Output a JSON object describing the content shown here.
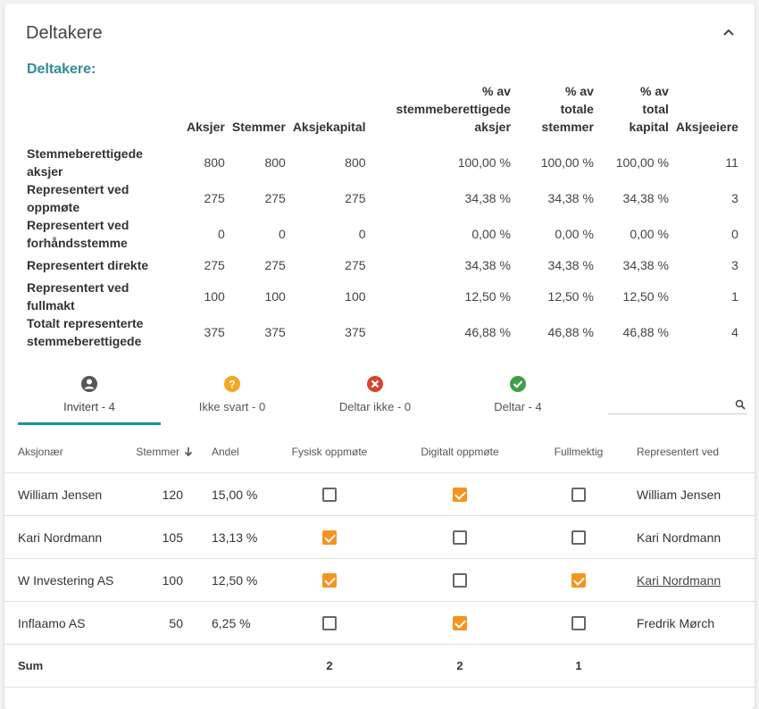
{
  "card": {
    "title": "Deltakere"
  },
  "summary": {
    "subtitle": "Deltakere:",
    "headers": [
      "Aksjer",
      "Stemmer",
      "Aksjekapital",
      "% av stemmeberettigede aksjer",
      "% av totale stemmer",
      "% av total kapital",
      "Aksjeeiere"
    ],
    "rows": [
      {
        "label": "Stemmeberettigede aksjer",
        "values": [
          "800",
          "800",
          "800",
          "100,00 %",
          "100,00 %",
          "100,00 %",
          "11"
        ]
      },
      {
        "label": "Representert ved oppmøte",
        "values": [
          "275",
          "275",
          "275",
          "34,38 %",
          "34,38 %",
          "34,38 %",
          "3"
        ]
      },
      {
        "label": "Representert ved forhåndsstemme",
        "values": [
          "0",
          "0",
          "0",
          "0,00 %",
          "0,00 %",
          "0,00 %",
          "0"
        ]
      },
      {
        "label": "Representert direkte",
        "values": [
          "275",
          "275",
          "275",
          "34,38 %",
          "34,38 %",
          "34,38 %",
          "3"
        ]
      },
      {
        "label": "Representert ved fullmakt",
        "values": [
          "100",
          "100",
          "100",
          "12,50 %",
          "12,50 %",
          "12,50 %",
          "1"
        ]
      },
      {
        "label": "Totalt representerte stemmeberettigede",
        "values": [
          "375",
          "375",
          "375",
          "46,88 %",
          "46,88 %",
          "46,88 %",
          "4"
        ]
      }
    ]
  },
  "tabs": [
    {
      "label": "Invitert - 4",
      "icon": "person-circle-icon",
      "color": "#555555"
    },
    {
      "label": "Ikke svart - 0",
      "icon": "question-circle-icon",
      "color": "#f5a623"
    },
    {
      "label": "Deltar ikke - 0",
      "icon": "x-circle-icon",
      "color": "#d9442a"
    },
    {
      "label": "Deltar - 4",
      "icon": "check-circle-icon",
      "color": "#3f9e48"
    }
  ],
  "search": {
    "placeholder": "",
    "icon": "search-icon"
  },
  "grid": {
    "headers": {
      "name": "Aksjonær",
      "votes": "Stemmer",
      "share": "Andel",
      "physical": "Fysisk oppmøte",
      "digital": "Digitalt oppmøte",
      "proxy": "Fullmektig",
      "represented": "Representert ved"
    },
    "rows": [
      {
        "name": "William Jensen",
        "votes": "120",
        "share": "15,00 %",
        "physical": false,
        "digital": true,
        "proxy": false,
        "represented": "William Jensen",
        "link": false
      },
      {
        "name": "Kari Nordmann",
        "votes": "105",
        "share": "13,13 %",
        "physical": true,
        "digital": false,
        "proxy": false,
        "represented": "Kari Nordmann",
        "link": false
      },
      {
        "name": "W Investering AS",
        "votes": "100",
        "share": "12,50 %",
        "physical": true,
        "digital": false,
        "proxy": true,
        "represented": "Kari Nordmann",
        "link": true
      },
      {
        "name": "Inflaamo AS",
        "votes": "50",
        "share": "6,25 %",
        "physical": false,
        "digital": true,
        "proxy": false,
        "represented": "Fredrik Mørch",
        "link": false
      }
    ],
    "sum": {
      "label": "Sum",
      "physical": "2",
      "digital": "2",
      "proxy": "1"
    }
  },
  "colors": {
    "accent": "#17919e",
    "subtitle": "#2e8b9a",
    "checked": "#f7931e"
  }
}
